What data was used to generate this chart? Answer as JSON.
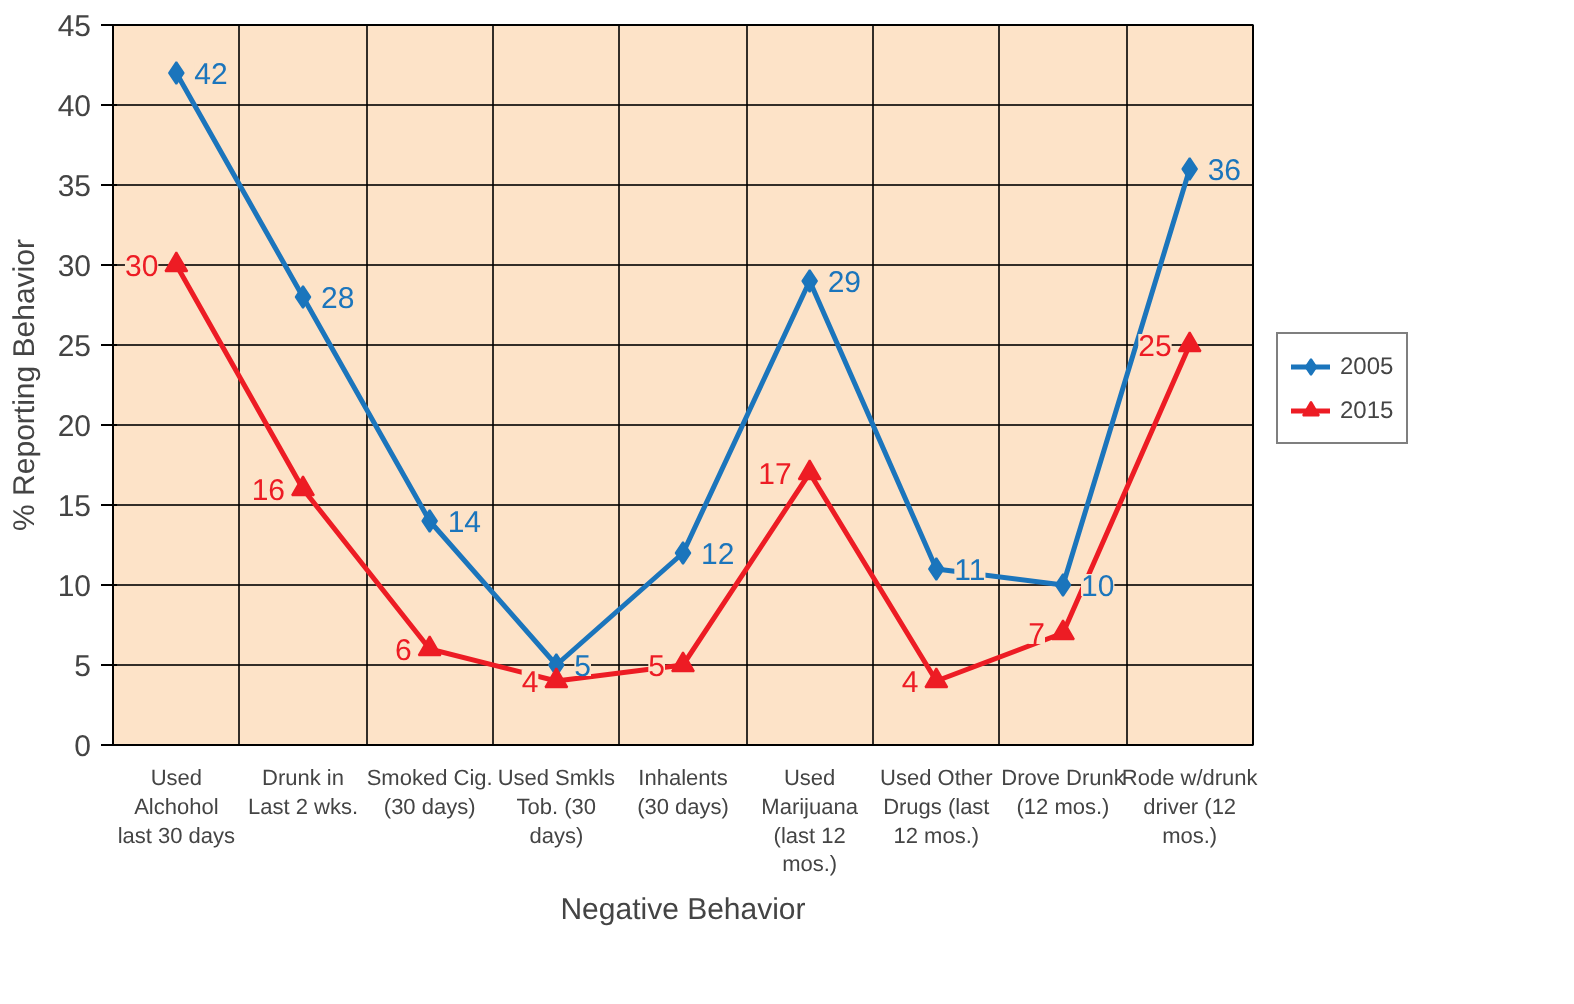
{
  "chart_data": {
    "type": "line",
    "xlabel": "Negative Behavior",
    "ylabel": "% Reporting Behavior",
    "categories": [
      "Used Alchohol last 30 days",
      "Drunk in Last 2 wks.",
      "Smoked Cig. (30 days)",
      "Used Smkls Tob. (30 days)",
      "Inhalents (30 days)",
      "Used Marijuana (last 12 mos.)",
      "Used Other Drugs (last 12 mos.)",
      "Drove Drunk (12 mos.)",
      "Rode w/drunk driver (12 mos.)"
    ],
    "series": [
      {
        "name": "2005",
        "color": "#1b75bc",
        "marker": "diamond",
        "values": [
          42,
          28,
          14,
          5,
          12,
          29,
          11,
          10,
          36
        ]
      },
      {
        "name": "2015",
        "color": "#ed1c24",
        "marker": "triangle",
        "values": [
          30,
          16,
          6,
          4,
          5,
          17,
          4,
          7,
          25
        ]
      }
    ],
    "ylim": [
      0,
      45
    ],
    "yticks": [
      0,
      5,
      10,
      15,
      20,
      25,
      30,
      35,
      40,
      45
    ],
    "grid": true,
    "legend": "right",
    "data_labels": true,
    "line_style": "solid"
  }
}
